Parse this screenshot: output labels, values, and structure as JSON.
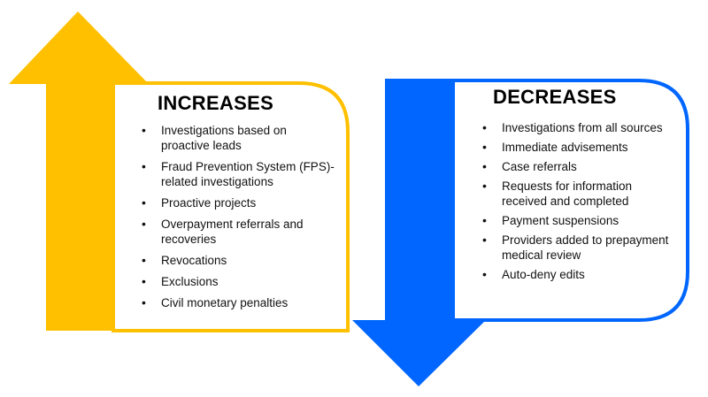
{
  "colors": {
    "increase_arrow": "#FFC000",
    "decrease_arrow": "#0066FF"
  },
  "increases": {
    "title": "INCREASES",
    "items": [
      "Investigations based on proactive leads",
      "Fraud Prevention System (FPS)-related investigations",
      "Proactive projects",
      "Overpayment referrals and recoveries",
      "Revocations",
      "Exclusions",
      "Civil monetary penalties"
    ]
  },
  "decreases": {
    "title": "DECREASES",
    "items": [
      "Investigations from all sources",
      "Immediate advisements",
      "Case referrals",
      "Requests for information received and completed",
      "Payment suspensions",
      "Providers added to prepayment medical review",
      "Auto-deny edits"
    ]
  }
}
